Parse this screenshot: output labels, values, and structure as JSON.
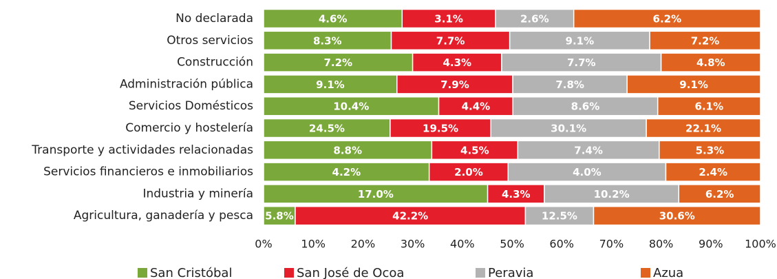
{
  "chart_data": {
    "type": "bar",
    "orientation": "horizontal",
    "stacking": "percent",
    "categories": [
      "No declarada",
      "Otros servicios",
      "Construcción",
      "Administración pública",
      "Servicios Domésticos",
      "Comercio y hostelería",
      "Transporte y actividades relacionadas",
      "Servicios financieros e inmobiliarios",
      "Industria y minería",
      "Agricultura, ganadería y pesca"
    ],
    "series": [
      {
        "name": "San Cristóbal",
        "color": "#7aa83a",
        "values": [
          4.6,
          8.3,
          7.2,
          9.1,
          10.4,
          24.5,
          8.8,
          4.2,
          17.0,
          5.8
        ],
        "value_labels": [
          "4.6%",
          "8.3%",
          "7.2%",
          "9.1%",
          "10.4%",
          "24.5%",
          "8.8%",
          "4.2%",
          "17.0%",
          "5.8%"
        ]
      },
      {
        "name": "San José de Ocoa",
        "color": "#e41e2b",
        "values": [
          3.1,
          7.7,
          4.3,
          7.9,
          4.4,
          19.5,
          4.5,
          2.0,
          4.3,
          42.2
        ],
        "value_labels": [
          "3.1%",
          "7.7%",
          "4.3%",
          "7.9%",
          "4.4%",
          "19.5%",
          "4.5%",
          "2.0%",
          "4.3%",
          "42.2%"
        ]
      },
      {
        "name": "Peravia",
        "color": "#b3b3b4",
        "values": [
          2.6,
          9.1,
          7.7,
          7.8,
          8.6,
          30.1,
          7.4,
          4.0,
          10.2,
          12.5
        ],
        "value_labels": [
          "2.6%",
          "9.1%",
          "7.7%",
          "7.8%",
          "8.6%",
          "30.1%",
          "7.4%",
          "4.0%",
          "10.2%",
          "12.5%"
        ]
      },
      {
        "name": "Azua",
        "color": "#e0641f",
        "values": [
          6.2,
          7.2,
          4.8,
          9.1,
          6.1,
          22.1,
          5.3,
          2.4,
          6.2,
          30.6
        ],
        "value_labels": [
          "6.2%",
          "7.2%",
          "4.8%",
          "9.1%",
          "6.1%",
          "22.1%",
          "5.3%",
          "2.4%",
          "6.2%",
          "30.6%"
        ]
      }
    ],
    "xlim": [
      0,
      100
    ],
    "xticks": [
      {
        "value": 0,
        "label": "0%"
      },
      {
        "value": 10,
        "label": "10%"
      },
      {
        "value": 20,
        "label": "20%"
      },
      {
        "value": 30,
        "label": "30%"
      },
      {
        "value": 40,
        "label": "40%"
      },
      {
        "value": 50,
        "label": "50%"
      },
      {
        "value": 60,
        "label": "60%"
      },
      {
        "value": 70,
        "label": "70%"
      },
      {
        "value": 80,
        "label": "80%"
      },
      {
        "value": 90,
        "label": "90%"
      },
      {
        "value": 100,
        "label": "100%"
      }
    ],
    "legend": "bottom"
  }
}
